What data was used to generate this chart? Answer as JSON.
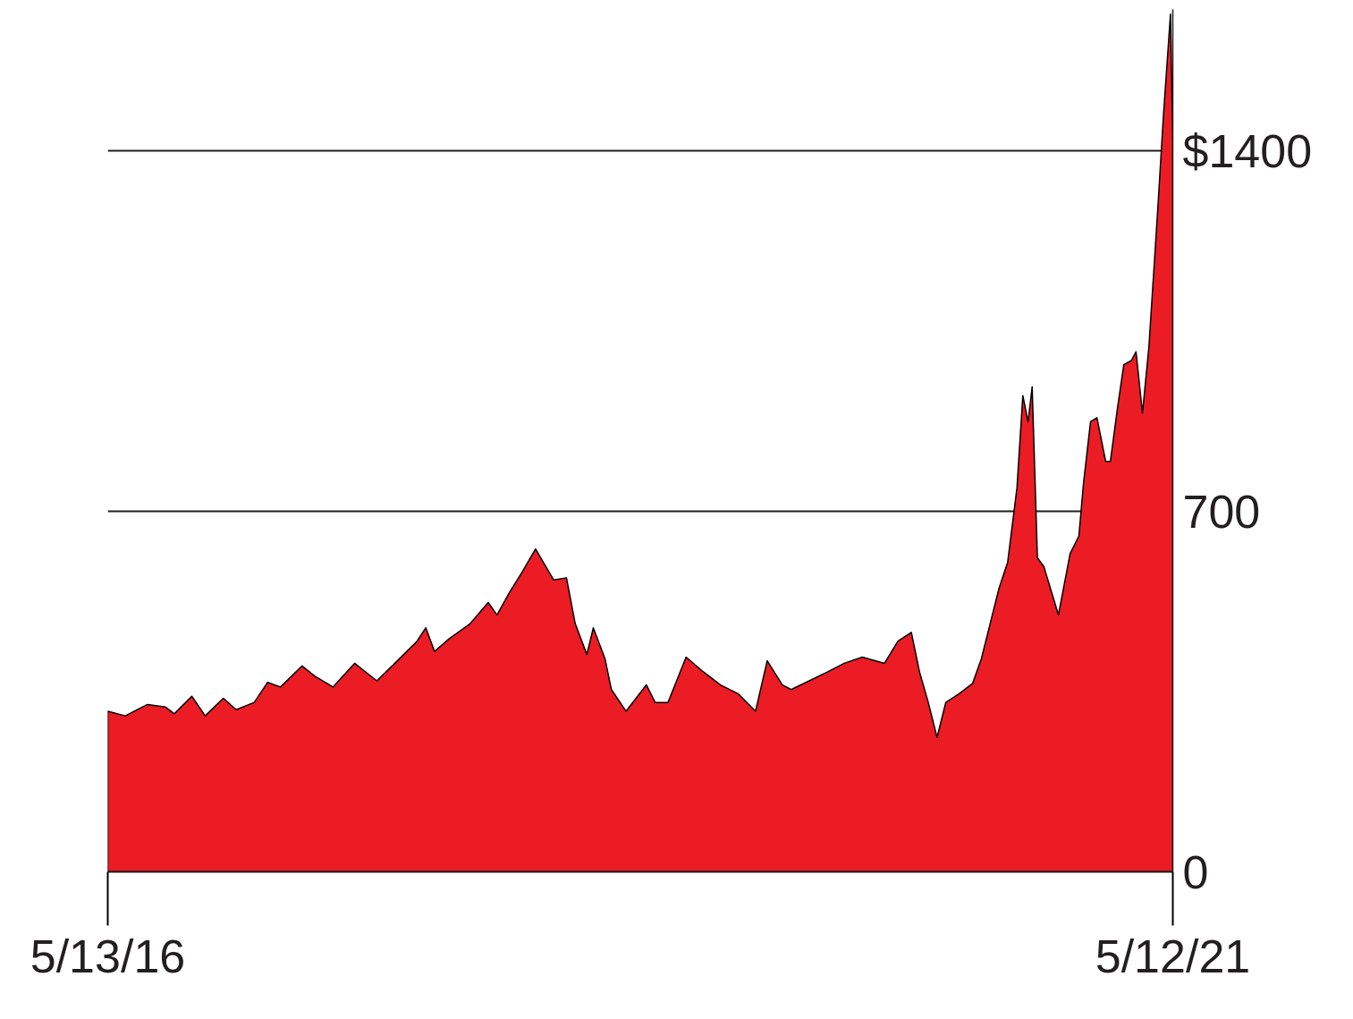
{
  "chart_data": {
    "type": "area",
    "grid": "y",
    "ylim": [
      0,
      1675
    ],
    "yticks": [
      0,
      700,
      {
        "value": 1400,
        "label": "$1400"
      }
    ],
    "xlim": [
      "2016-05-13",
      "2021-05-12"
    ],
    "xticks": [
      {
        "value": "2016-05-13",
        "label": "5/13/16"
      },
      {
        "value": "2021-05-12",
        "label": "5/12/21"
      }
    ],
    "series": [
      {
        "color": "#ec1c24",
        "x": [
          "2016-05-13",
          "2016-06-12",
          "2016-07-20",
          "2016-08-20",
          "2016-09-04",
          "2016-10-04",
          "2016-10-27",
          "2016-11-27",
          "2016-12-19",
          "2017-01-19",
          "2017-02-11",
          "2017-03-05",
          "2017-04-11",
          "2017-05-03",
          "2017-06-03",
          "2017-07-10",
          "2017-08-17",
          "2017-09-17",
          "2017-10-25",
          "2017-11-09",
          "2017-11-24",
          "2017-12-17",
          "2018-01-24",
          "2018-02-24",
          "2018-03-11",
          "2018-04-01",
          "2018-04-24",
          "2018-05-16",
          "2018-06-16",
          "2018-07-08",
          "2018-07-23",
          "2018-08-12",
          "2018-08-23",
          "2018-09-12",
          "2018-09-23",
          "2018-10-18",
          "2018-11-22",
          "2018-12-07",
          "2018-12-29",
          "2019-01-29",
          "2019-02-28",
          "2019-03-29",
          "2019-04-28",
          "2019-05-28",
          "2019-06-17",
          "2019-07-13",
          "2019-07-28",
          "2019-08-28",
          "2019-09-28",
          "2019-10-27",
          "2019-11-27",
          "2020-01-04",
          "2020-01-27",
          "2020-02-19",
          "2020-03-04",
          "2020-03-19",
          "2020-04-03",
          "2020-04-18",
          "2020-05-11",
          "2020-06-03",
          "2020-06-18",
          "2020-07-03",
          "2020-07-18",
          "2020-08-02",
          "2020-08-18",
          "2020-08-28",
          "2020-09-06",
          "2020-09-13",
          "2020-09-22",
          "2020-10-03",
          "2020-10-28",
          "2020-11-17",
          "2020-12-02",
          "2020-12-10",
          "2020-12-22",
          "2021-01-02",
          "2021-01-17",
          "2021-01-25",
          "2021-02-06",
          "2021-02-17",
          "2021-03-02",
          "2021-03-10",
          "2021-03-21",
          "2021-04-01",
          "2021-04-16",
          "2021-04-26",
          "2021-05-08",
          "2021-05-12"
        ],
        "values": [
          312,
          303,
          325,
          320,
          307,
          341,
          303,
          337,
          315,
          329,
          368,
          359,
          400,
          380,
          359,
          405,
          371,
          405,
          448,
          474,
          428,
          451,
          482,
          523,
          499,
          542,
          584,
          627,
          567,
          571,
          482,
          422,
          474,
          414,
          354,
          312,
          363,
          329,
          329,
          417,
          388,
          363,
          346,
          312,
          410,
          363,
          354,
          371,
          388,
          405,
          417,
          405,
          448,
          465,
          388,
          329,
          261,
          329,
          346,
          366,
          414,
          482,
          550,
          601,
          746,
          925,
          874,
          942,
          610,
          593,
          499,
          618,
          652,
          755,
          874,
          882,
          797,
          797,
          899,
          985,
          993,
          1010,
          891,
          1019,
          1283,
          1470,
          1666,
          1419
        ]
      }
    ]
  }
}
